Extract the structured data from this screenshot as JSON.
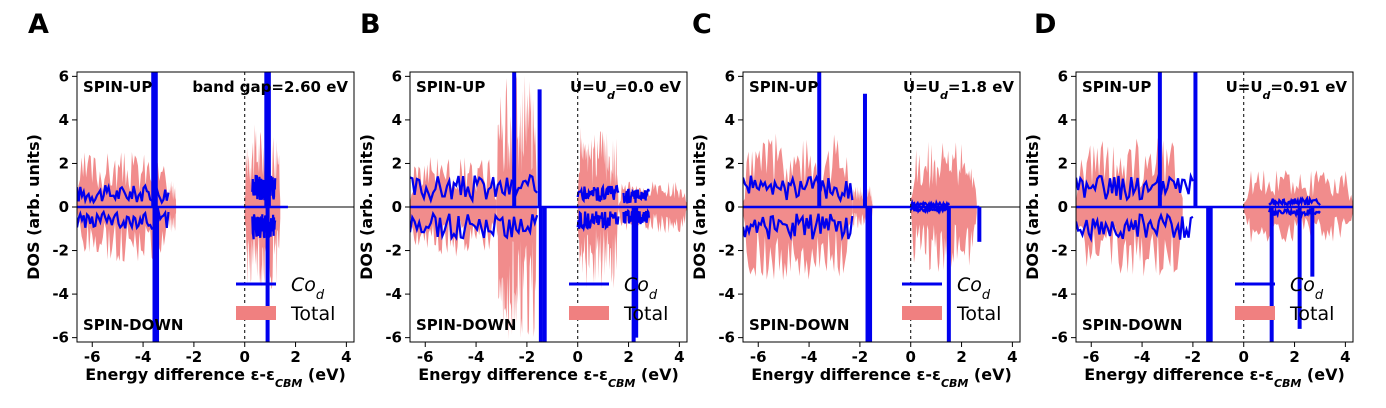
{
  "colors": {
    "total": "#f08080",
    "cod": "#0000ee",
    "axis": "#000000"
  },
  "chart_data": [
    {
      "type": "area",
      "panel_label": "A",
      "annotation_right": "band gap=2.60 eV",
      "spin_up_label": "SPIN-UP",
      "spin_down_label": "SPIN-DOWN",
      "xlabel": "Energy difference ε-ε",
      "xlabel_sub": "CBM",
      "xlabel_unit": " (eV)",
      "ylabel": "DOS (arb. units)",
      "xlim": [
        -6.6,
        4.3
      ],
      "ylim": [
        -6.2,
        6.2
      ],
      "xticks": [
        -6,
        -4,
        -2,
        0,
        2,
        4
      ],
      "yticks": [
        -6,
        -4,
        -2,
        0,
        2,
        4,
        6
      ],
      "dashed_x": 0,
      "legend": [
        {
          "name": "Co",
          "sub": "d"
        },
        {
          "name": "Total"
        }
      ],
      "total_bands": [
        [
          -6.6,
          -3.0,
          2.6
        ],
        [
          -3.0,
          -2.7,
          1.2
        ],
        [
          0.0,
          1.4,
          3.8
        ]
      ],
      "cod_spikes": [
        [
          -3.6,
          6.2
        ],
        [
          -3.5,
          6.2
        ],
        [
          -3.55,
          -6.2
        ],
        [
          -3.45,
          -6.2
        ],
        [
          0.85,
          6.2
        ],
        [
          0.9,
          -6.2
        ],
        [
          0.95,
          6.2
        ]
      ],
      "cod_bands": [
        [
          -6.6,
          -3.0,
          1.0
        ],
        [
          0.3,
          1.2,
          1.5
        ]
      ],
      "cod_tail_end": 1.7
    },
    {
      "type": "area",
      "panel_label": "B",
      "annotation_right": "U=U",
      "annotation_sub": "d",
      "annotation_tail": "=0.0 eV",
      "spin_up_label": "SPIN-UP",
      "spin_down_label": "SPIN-DOWN",
      "xlabel": "Energy difference ε-ε",
      "xlabel_sub": "CBM",
      "xlabel_unit": " (eV)",
      "ylabel": "DOS (arb. units)",
      "xlim": [
        -6.6,
        4.3
      ],
      "ylim": [
        -6.2,
        6.2
      ],
      "xticks": [
        -6,
        -4,
        -2,
        0,
        2,
        4
      ],
      "yticks": [
        -6,
        -4,
        -2,
        0,
        2,
        4,
        6
      ],
      "dashed_x": 0,
      "legend": [
        {
          "name": "Co",
          "sub": "d"
        },
        {
          "name": "Total"
        }
      ],
      "total_bands": [
        [
          -6.6,
          -3.2,
          2.3
        ],
        [
          -3.2,
          -1.6,
          6.2
        ],
        [
          0.0,
          1.6,
          3.8
        ],
        [
          1.6,
          4.3,
          1.2
        ]
      ],
      "cod_spikes": [
        [
          -2.5,
          6.2
        ],
        [
          -1.5,
          5.4
        ],
        [
          -1.45,
          -6.2
        ],
        [
          -1.3,
          -6.2
        ],
        [
          2.2,
          -6.2
        ],
        [
          2.3,
          -6.0
        ]
      ],
      "cod_bands": [
        [
          -6.6,
          -1.6,
          1.5
        ],
        [
          0.0,
          1.6,
          1.0
        ],
        [
          1.8,
          2.8,
          0.8
        ]
      ],
      "cod_tail_end": 4.3
    },
    {
      "type": "area",
      "panel_label": "C",
      "annotation_right": "U=U",
      "annotation_sub": "d",
      "annotation_tail": "=1.8 eV",
      "spin_up_label": "SPIN-UP",
      "spin_down_label": "SPIN-DOWN",
      "xlabel": "Energy difference ε-ε",
      "xlabel_sub": "CBM",
      "xlabel_unit": " (eV)",
      "ylabel": "DOS (arb. units)",
      "xlim": [
        -6.6,
        4.3
      ],
      "ylim": [
        -6.2,
        6.2
      ],
      "xticks": [
        -6,
        -4,
        -2,
        0,
        2,
        4
      ],
      "yticks": [
        -6,
        -4,
        -2,
        0,
        2,
        4,
        6
      ],
      "dashed_x": 0,
      "legend": [
        {
          "name": "Co",
          "sub": "d"
        },
        {
          "name": "Total"
        }
      ],
      "total_bands": [
        [
          -6.6,
          -2.3,
          3.4
        ],
        [
          -2.3,
          -1.5,
          1.0
        ],
        [
          0.0,
          2.6,
          3.0
        ]
      ],
      "cod_spikes": [
        [
          -3.6,
          6.2
        ],
        [
          -1.8,
          5.2
        ],
        [
          -1.7,
          -6.2
        ],
        [
          -1.6,
          -6.2
        ],
        [
          1.5,
          -6.2
        ],
        [
          2.7,
          -1.6
        ]
      ],
      "cod_bands": [
        [
          -6.6,
          -2.3,
          1.5
        ],
        [
          0.0,
          1.5,
          0.2
        ]
      ],
      "cod_tail_end": 2.7
    },
    {
      "type": "area",
      "panel_label": "D",
      "annotation_right": "U=U",
      "annotation_sub": "d",
      "annotation_tail": "=0.91 eV",
      "spin_up_label": "SPIN-UP",
      "spin_down_label": "SPIN-DOWN",
      "xlabel": "Energy difference ε-ε",
      "xlabel_sub": "CBM",
      "xlabel_unit": " (eV)",
      "ylabel": "DOS (arb. units)",
      "xlim": [
        -6.6,
        4.3
      ],
      "ylim": [
        -6.2,
        6.2
      ],
      "xticks": [
        -6,
        -4,
        -2,
        0,
        2,
        4
      ],
      "yticks": [
        -6,
        -4,
        -2,
        0,
        2,
        4,
        6
      ],
      "dashed_x": 0,
      "legend": [
        {
          "name": "Co",
          "sub": "d"
        },
        {
          "name": "Total"
        }
      ],
      "total_bands": [
        [
          -6.6,
          -2.4,
          3.2
        ],
        [
          0.0,
          4.3,
          1.7
        ]
      ],
      "cod_spikes": [
        [
          -3.3,
          6.2
        ],
        [
          -1.9,
          6.2
        ],
        [
          -1.4,
          -6.2
        ],
        [
          -1.3,
          -6.2
        ],
        [
          1.1,
          -6.2
        ],
        [
          2.2,
          -5.6
        ],
        [
          2.7,
          -3.2
        ]
      ],
      "cod_bands": [
        [
          -6.6,
          -2.0,
          1.5
        ],
        [
          1.0,
          3.0,
          0.4
        ]
      ],
      "cod_tail_end": 4.3
    }
  ]
}
